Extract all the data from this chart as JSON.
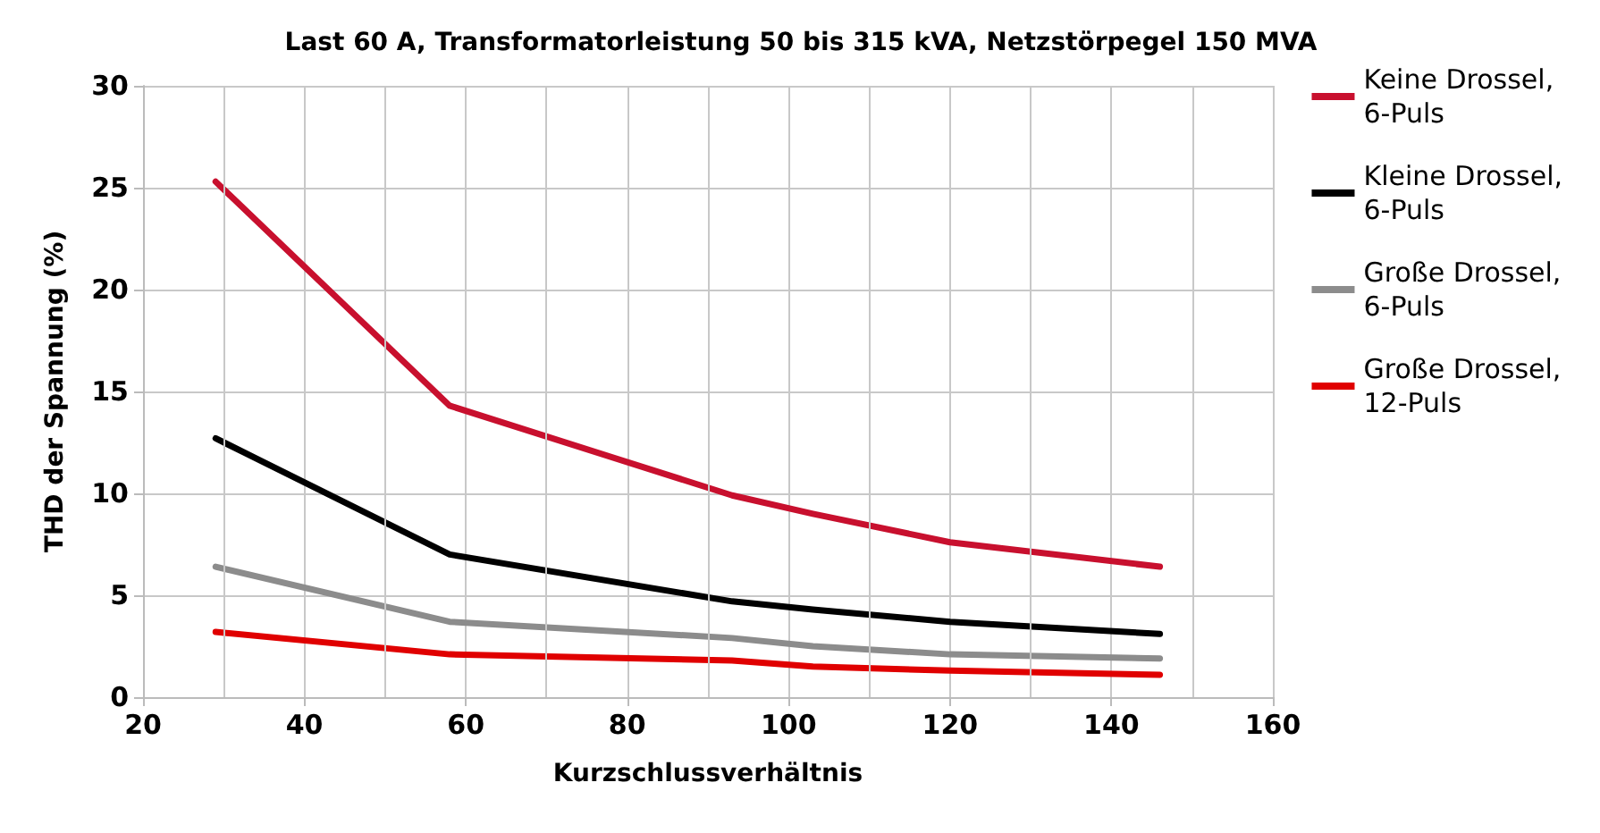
{
  "chart_data": {
    "type": "line",
    "title": "Last 60 A, Transformatorleistung 50 bis 315 kVA, Netzstörpegel 150 MVA",
    "xlabel": "Kurzschlussverhältnis",
    "ylabel": "THD der Spannung (%)",
    "x": [
      29,
      58,
      93,
      103,
      120,
      146
    ],
    "series": [
      {
        "name": "Keine Drossel,\n6-Puls",
        "color": "#c8102e",
        "values": [
          25.3,
          14.3,
          9.9,
          9.0,
          7.6,
          6.4
        ]
      },
      {
        "name": "Kleine Drossel,\n6-Puls",
        "color": "#000000",
        "values": [
          12.7,
          7.0,
          4.7,
          4.3,
          3.7,
          3.1
        ]
      },
      {
        "name": "Große Drossel,\n6-Puls",
        "color": "#8c8c8c",
        "values": [
          6.4,
          3.7,
          2.9,
          2.5,
          2.1,
          1.9
        ]
      },
      {
        "name": "Große Drossel,\n12-Puls",
        "color": "#e00000",
        "values": [
          3.2,
          2.1,
          1.8,
          1.5,
          1.3,
          1.1
        ]
      }
    ],
    "xlim": [
      20,
      160
    ],
    "xticks": [
      20,
      40,
      60,
      80,
      100,
      120,
      140,
      160
    ],
    "ylim": [
      0,
      30
    ],
    "yticks": [
      0,
      5,
      10,
      15,
      20,
      25,
      30
    ],
    "grid": true,
    "legend": "right",
    "marker": "none",
    "line_style": "solid"
  }
}
